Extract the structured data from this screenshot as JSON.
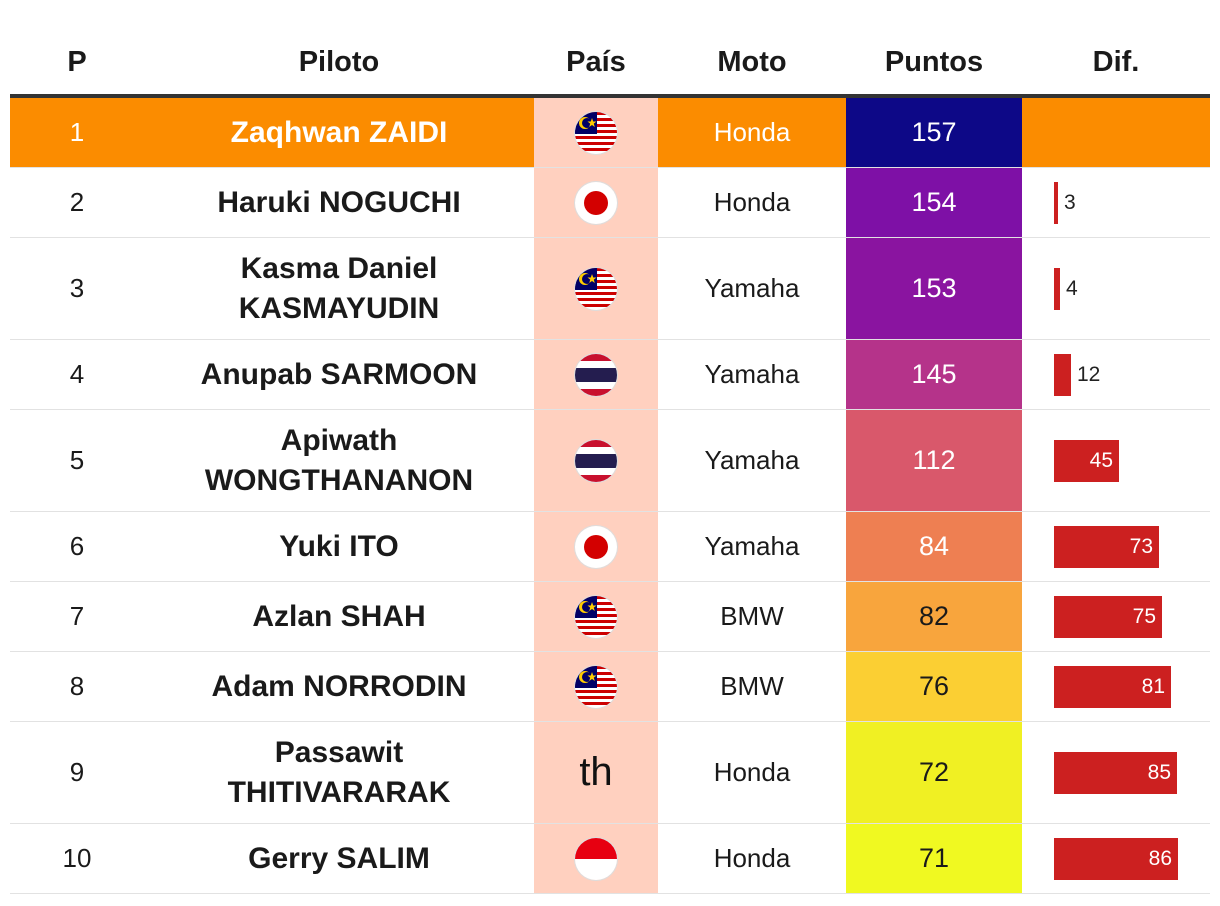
{
  "headers": {
    "p": "P",
    "piloto": "Piloto",
    "pais": "País",
    "moto": "Moto",
    "puntos": "Puntos",
    "dif": "Dif."
  },
  "max_dif": 86,
  "rows": [
    {
      "p": "1",
      "name": "Zaqhwan ZAIDI",
      "country": "malaysia",
      "moto": "Honda",
      "pts": "157",
      "pts_color": "#0d0887",
      "pts_text": "#ffffff",
      "dif": null
    },
    {
      "p": "2",
      "name": "Haruki NOGUCHI",
      "country": "japan",
      "moto": "Honda",
      "pts": "154",
      "pts_color": "#7e10a6",
      "pts_text": "#ffffff",
      "dif": 3
    },
    {
      "p": "3",
      "name": "Kasma Daniel KASMAYUDIN",
      "country": "malaysia",
      "moto": "Yamaha",
      "pts": "153",
      "pts_color": "#8a14a0",
      "pts_text": "#ffffff",
      "dif": 4
    },
    {
      "p": "4",
      "name": "Anupab SARMOON",
      "country": "thailand",
      "moto": "Yamaha",
      "pts": "145",
      "pts_color": "#b5338a",
      "pts_text": "#ffffff",
      "dif": 12
    },
    {
      "p": "5",
      "name": "Apiwath WONGTHANANON",
      "country": "thailand",
      "moto": "Yamaha",
      "pts": "112",
      "pts_color": "#d9586b",
      "pts_text": "#ffffff",
      "dif": 45
    },
    {
      "p": "6",
      "name": "Yuki ITO",
      "country": "japan",
      "moto": "Yamaha",
      "pts": "84",
      "pts_color": "#ee7f52",
      "pts_text": "#ffffff",
      "dif": 73
    },
    {
      "p": "7",
      "name": "Azlan SHAH",
      "country": "malaysia",
      "moto": "BMW",
      "pts": "82",
      "pts_color": "#f8a53d",
      "pts_text": "#1a1a1a",
      "dif": 75
    },
    {
      "p": "8",
      "name": "Adam NORRODIN",
      "country": "malaysia",
      "moto": "BMW",
      "pts": "76",
      "pts_color": "#fbcf33",
      "pts_text": "#1a1a1a",
      "dif": 81
    },
    {
      "p": "9",
      "name": "Passawit THITIVARARAK",
      "country": "th",
      "country_text": "th",
      "moto": "Honda",
      "pts": "72",
      "pts_color": "#f0f023",
      "pts_text": "#1a1a1a",
      "dif": 85
    },
    {
      "p": "10",
      "name": "Gerry SALIM",
      "country": "indonesia",
      "moto": "Honda",
      "pts": "71",
      "pts_color": "#f0f921",
      "pts_text": "#1a1a1a",
      "dif": 86
    }
  ]
}
